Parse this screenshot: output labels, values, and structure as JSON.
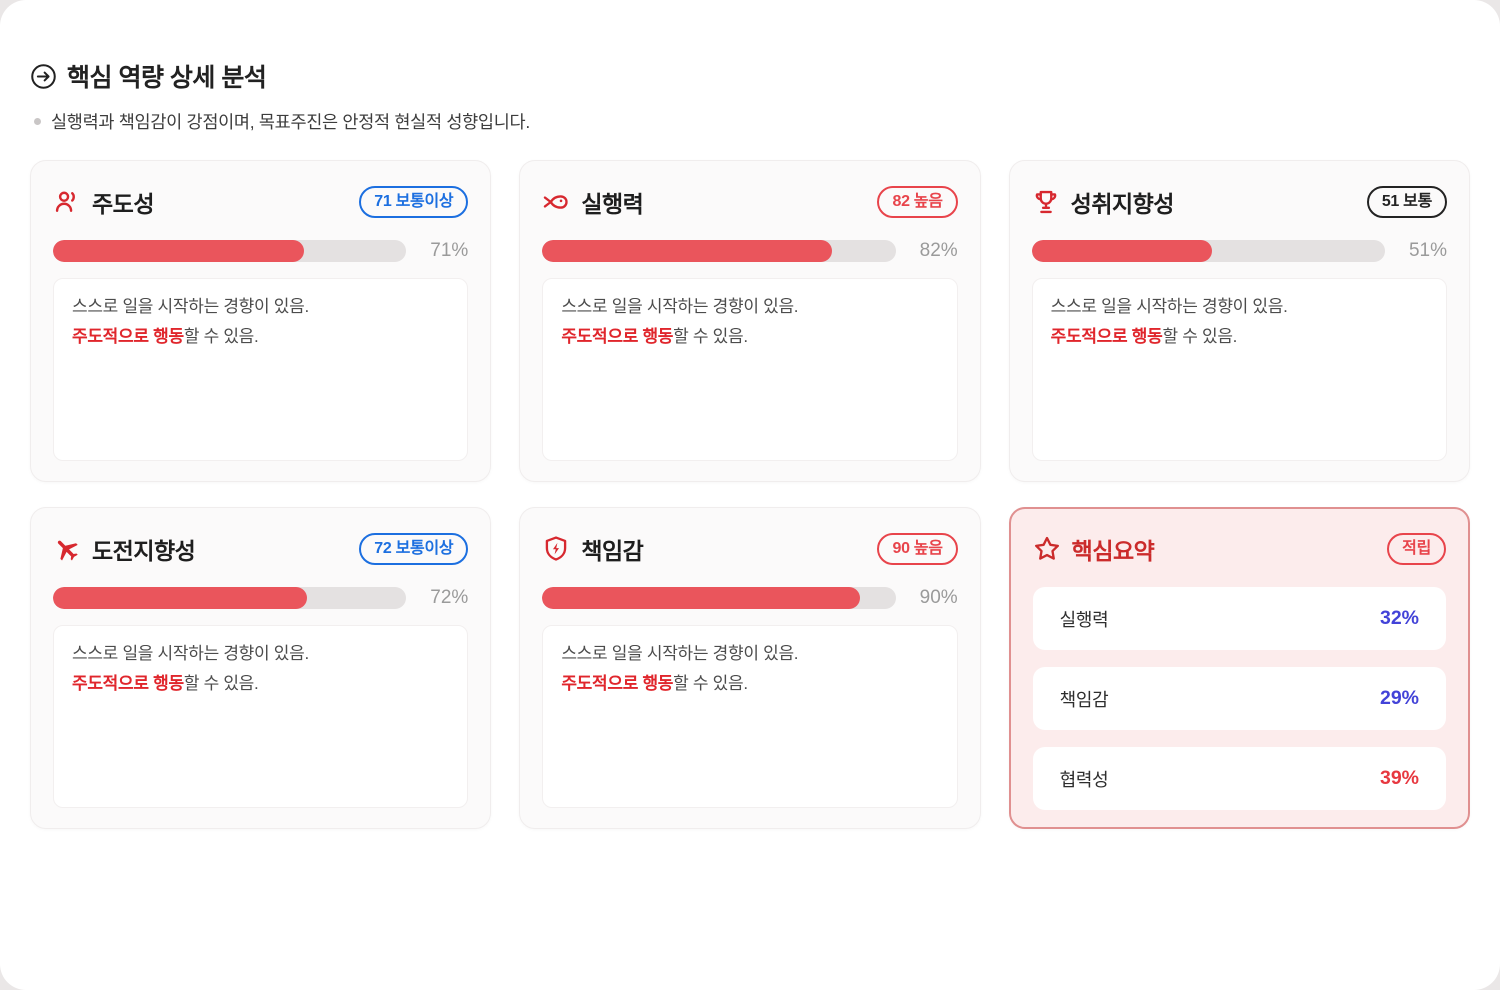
{
  "page": {
    "title": "핵심 역량 상세 분석",
    "subtitle": "실행력과 책임감이 강점이며, 목표주진은 안정적 현실적 성향입니다."
  },
  "colors": {
    "accent_red": "#ea555c",
    "icon_red": "#d7282f",
    "badge_blue": "#1c6fe0",
    "badge_red": "#e8444b",
    "badge_dark": "#232323",
    "highlight_red": "#e0262c",
    "summary_bg": "#fcecec",
    "summary_border": "#e09090",
    "summary_title_red": "#cb2b2b",
    "value_blue": "#4343d8",
    "value_red": "#e73840",
    "track_gray": "#e4e1e1"
  },
  "cards": [
    {
      "title": "주도성",
      "icon": "person-icon",
      "badge_label": "71 보통이상",
      "badge_variant": "blue",
      "percent": 71,
      "percent_label": "71%",
      "desc_line1": "스스로 일을 시작하는 경향이 있음.",
      "desc_highlight": "주도적으로 행동",
      "desc_rest": "할 수 있음."
    },
    {
      "title": "실행력",
      "icon": "fish-icon",
      "badge_label": "82 높음",
      "badge_variant": "red",
      "percent": 82,
      "percent_label": "82%",
      "desc_line1": "스스로 일을 시작하는 경향이 있음.",
      "desc_highlight": "주도적으로 행동",
      "desc_rest": "할 수 있음."
    },
    {
      "title": "성취지향성",
      "icon": "trophy-icon",
      "badge_label": "51 보통",
      "badge_variant": "dark",
      "percent": 51,
      "percent_label": "51%",
      "desc_line1": "스스로 일을 시작하는 경향이 있음.",
      "desc_highlight": "주도적으로 행동",
      "desc_rest": "할 수 있음."
    },
    {
      "title": "도전지향성",
      "icon": "airplane-icon",
      "badge_label": "72 보통이상",
      "badge_variant": "blue",
      "percent": 72,
      "percent_label": "72%",
      "desc_line1": "스스로 일을 시작하는 경향이 있음.",
      "desc_highlight": "주도적으로 행동",
      "desc_rest": "할 수 있음."
    },
    {
      "title": "책임감",
      "icon": "shield-bolt-icon",
      "badge_label": "90 높음",
      "badge_variant": "red",
      "percent": 90,
      "percent_label": "90%",
      "desc_line1": "스스로 일을 시작하는 경향이 있음.",
      "desc_highlight": "주도적으로 행동",
      "desc_rest": "할 수 있음."
    }
  ],
  "summary": {
    "title": "핵심요약",
    "icon": "star-icon",
    "badge_label": "적립",
    "rows": [
      {
        "label": "실행력",
        "value": "32%",
        "value_color": "blue"
      },
      {
        "label": "책임감",
        "value": "29%",
        "value_color": "blue"
      },
      {
        "label": "협력성",
        "value": "39%",
        "value_color": "red"
      }
    ]
  }
}
